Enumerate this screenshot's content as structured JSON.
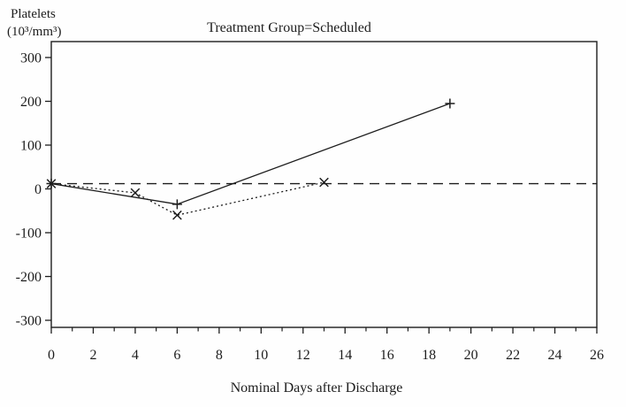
{
  "chart_data": {
    "type": "line",
    "title": "Treatment Group=Scheduled",
    "ylabel": "Platelets (10³/mm³)",
    "ylabel_lines": [
      "Platelets",
      "(10³/mm³)"
    ],
    "xlabel": "Nominal Days after Discharge",
    "xlim": [
      0,
      26
    ],
    "ylim": [
      -300,
      300
    ],
    "x_major_ticks": [
      0,
      2,
      4,
      6,
      8,
      10,
      12,
      14,
      16,
      18,
      20,
      22,
      24,
      26
    ],
    "x_minor_tick_step": 1,
    "y_major_ticks": [
      300,
      200,
      100,
      0,
      -100,
      -200,
      -300
    ],
    "grid": false,
    "legend": "none",
    "axis_color": "#1d1d1d",
    "background": "#fefefe",
    "reference_line": {
      "y": 12,
      "style": "long-dash"
    },
    "series": [
      {
        "name": "plus-marker-series",
        "marker": "plus",
        "line_style": "solid",
        "points": [
          [
            0,
            12
          ],
          [
            6,
            -35
          ],
          [
            19,
            195
          ]
        ]
      },
      {
        "name": "x-marker-series",
        "marker": "x",
        "line_style": "dotted",
        "points": [
          [
            0,
            12
          ],
          [
            4,
            -9
          ],
          [
            6,
            -60
          ],
          [
            13,
            15
          ]
        ]
      }
    ]
  }
}
